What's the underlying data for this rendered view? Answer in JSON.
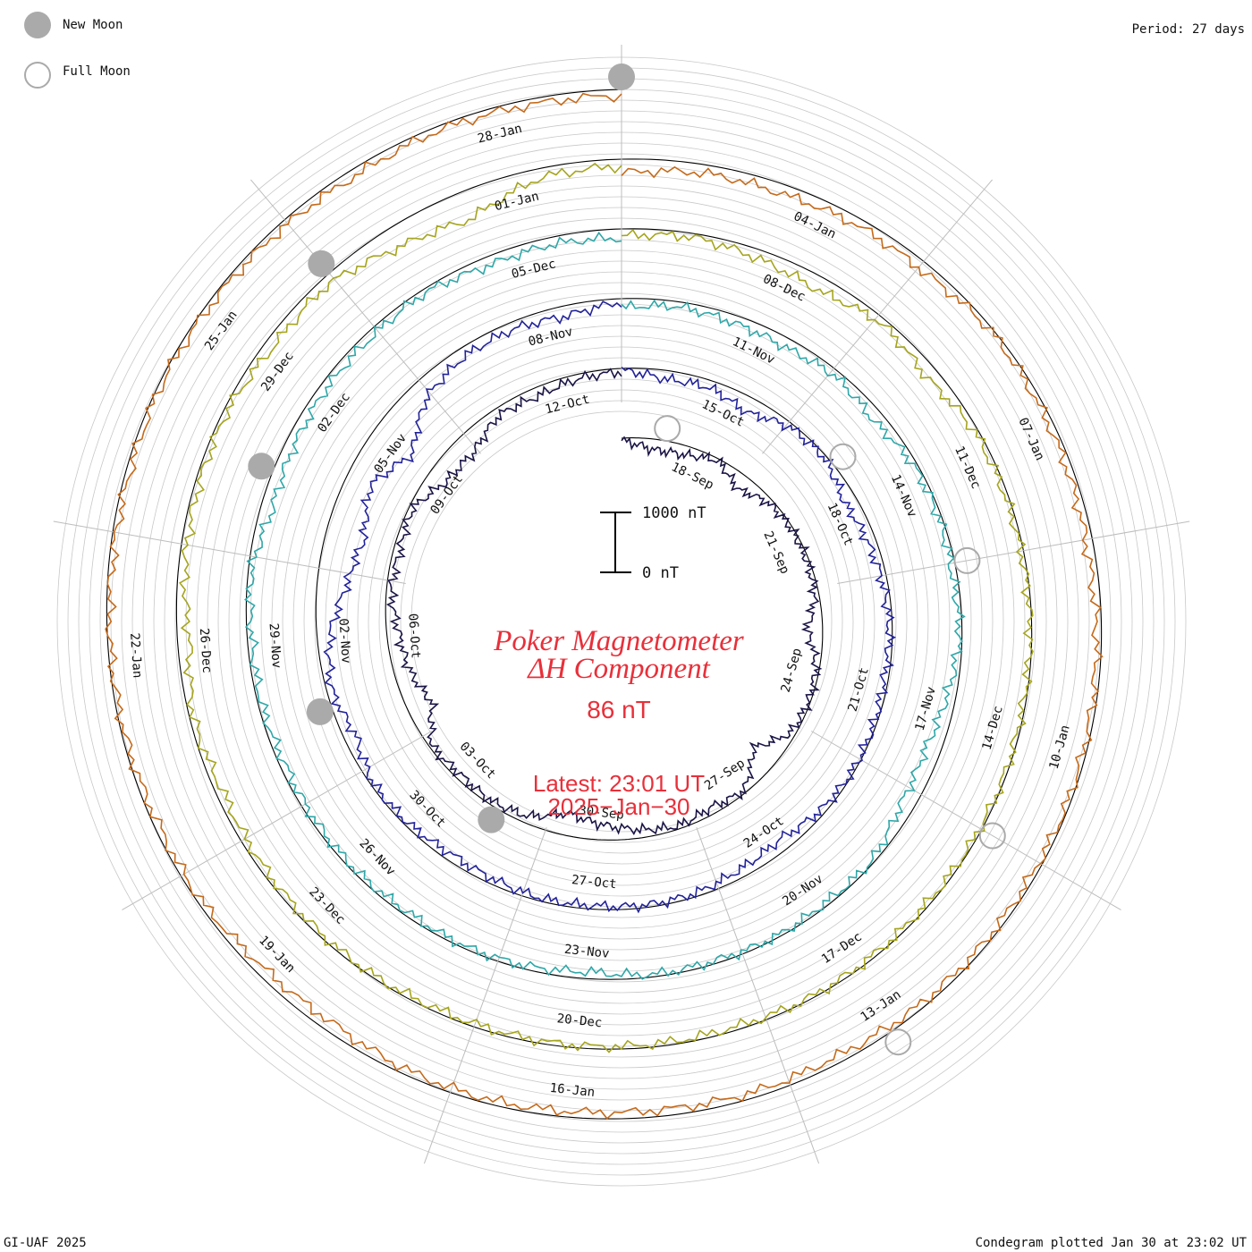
{
  "legend": {
    "new_moon_label": "New Moon",
    "full_moon_label": "Full Moon",
    "new_moon_color": "#aaaaaa",
    "full_moon_color": "#aaaaaa"
  },
  "period_label": "Period: 27 days",
  "footer": {
    "left": "GI-UAF 2025",
    "right": "Condegram plotted Jan 30 at 23:02 UT"
  },
  "center": {
    "title_line1": "Poker Magnetometer",
    "title_line2": "ΔH Component",
    "value": "86 nT",
    "latest_line1": "Latest: 23:01 UT",
    "latest_line2": "2025−Jan−30",
    "accent_color": "#e8303a"
  },
  "scale_bar": {
    "top_label": "1000 nT",
    "bottom_label": "0 nT"
  },
  "chart_data": {
    "type": "line",
    "projection": "spiral condegram",
    "period_days": 27,
    "start": "2024-09-16",
    "end": "2025-01-30 23:01 UT",
    "unit": "nT",
    "scale": [
      0,
      1000
    ],
    "series": [
      {
        "color": "#1a1445",
        "dates": [
          "18-Sep",
          "21-Sep",
          "24-Sep",
          "27-Sep",
          "30-Sep",
          "03-Oct",
          "06-Oct",
          "09-Oct",
          "12-Oct"
        ],
        "values": [
          40,
          180,
          160,
          30,
          260,
          70,
          30,
          40,
          70,
          260,
          60,
          30,
          80,
          450,
          40,
          120,
          50,
          140,
          250,
          380,
          120,
          60,
          90,
          40,
          420,
          260,
          200,
          80,
          110,
          60,
          320,
          350,
          120,
          150,
          80,
          60
        ]
      },
      {
        "color": "#22229a",
        "dates": [
          "15-Oct",
          "18-Oct",
          "21-Oct",
          "24-Oct",
          "27-Oct",
          "30-Oct",
          "02-Nov",
          "05-Nov",
          "08-Nov"
        ],
        "values": [
          30,
          150,
          120,
          260,
          60,
          40,
          210,
          140,
          80,
          50,
          70,
          40,
          30,
          80,
          200,
          140,
          60,
          40,
          60,
          50,
          90,
          120,
          60,
          40,
          200,
          80,
          220,
          500,
          650,
          420,
          760,
          300,
          150,
          120,
          180,
          60
        ]
      },
      {
        "color": "#2fa7a8",
        "dates": [
          "11-Nov",
          "14-Nov",
          "17-Nov",
          "20-Nov",
          "23-Nov",
          "26-Nov",
          "29-Nov",
          "02-Dec",
          "05-Dec"
        ],
        "values": [
          150,
          80,
          130,
          160,
          90,
          180,
          60,
          50,
          80,
          40,
          150,
          260,
          220,
          40,
          60,
          30,
          50,
          40,
          120,
          60,
          40,
          70,
          50,
          60,
          90,
          60,
          80,
          50,
          200,
          150,
          110,
          100,
          60,
          150,
          120,
          160
        ]
      },
      {
        "color": "#a5a51e",
        "dates": [
          "08-Dec",
          "11-Dec",
          "14-Dec",
          "17-Dec",
          "20-Dec",
          "23-Dec",
          "26-Dec",
          "29-Dec",
          "01-Jan"
        ],
        "values": [
          120,
          60,
          150,
          230,
          80,
          200,
          60,
          50,
          40,
          30,
          40,
          30,
          40,
          50,
          40,
          30,
          60,
          50,
          40,
          50,
          60,
          40,
          50,
          80,
          120,
          60,
          200,
          100,
          70,
          60,
          150,
          120,
          350,
          480,
          150,
          120
        ]
      },
      {
        "color": "#c56a1a",
        "dates": [
          "04-Jan",
          "07-Jan",
          "10-Jan",
          "13-Jan",
          "16-Jan",
          "19-Jan",
          "22-Jan",
          "25-Jan",
          "28-Jan"
        ],
        "values": [
          230,
          140,
          160,
          120,
          140,
          40,
          70,
          90,
          120,
          80,
          60,
          50,
          70,
          60,
          80,
          120,
          90,
          110,
          100,
          70,
          90,
          160,
          140,
          60,
          80,
          50,
          40,
          60,
          70,
          40,
          60,
          80,
          120,
          70,
          90,
          110
        ]
      }
    ],
    "moons": [
      {
        "type": "full",
        "date": "17-Sep"
      },
      {
        "type": "new",
        "date": "02-Oct"
      },
      {
        "type": "full",
        "date": "17-Oct"
      },
      {
        "type": "new",
        "date": "01-Nov"
      },
      {
        "type": "full",
        "date": "15-Nov"
      },
      {
        "type": "new",
        "date": "01-Dec"
      },
      {
        "type": "full",
        "date": "15-Dec"
      },
      {
        "type": "new",
        "date": "30-Dec"
      },
      {
        "type": "full",
        "date": "13-Jan"
      },
      {
        "type": "new",
        "date": "29-Jan"
      }
    ]
  }
}
